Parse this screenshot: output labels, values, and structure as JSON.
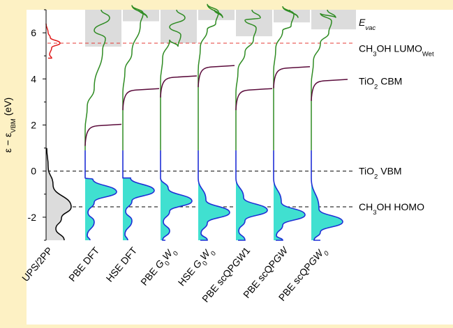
{
  "chart_data": {
    "type": "line",
    "title": "",
    "xlabel": "",
    "ylabel": {
      "parts": [
        {
          "text": "ε − ε",
          "sub": ""
        },
        {
          "text": "",
          "sub": "VBM"
        },
        {
          "text": " (eV)",
          "sub": ""
        }
      ]
    },
    "ylim": [
      -3.0,
      7.0
    ],
    "yticks": [
      -2,
      0,
      2,
      4,
      6
    ],
    "ytick_labels": [
      "-2",
      "0",
      "2",
      "4",
      "6"
    ],
    "reference_lines": [
      {
        "id": "lumo",
        "value": 5.55,
        "style": "dashed",
        "color": "#e53935"
      },
      {
        "id": "vbm",
        "value": 0.0,
        "style": "dashed",
        "color": "#000000"
      },
      {
        "id": "homo",
        "value": -1.55,
        "style": "dashed",
        "color": "#000000"
      }
    ],
    "level_labels": [
      {
        "id": "evac",
        "value": 6.4,
        "parts": [
          {
            "t": "E",
            "it": true
          },
          {
            "t": "vac",
            "sub": true,
            "it": true
          }
        ]
      },
      {
        "id": "lumo",
        "value": 5.55,
        "parts": [
          {
            "t": "CH"
          },
          {
            "t": "3",
            "sub": true
          },
          {
            "t": "OH LUMO"
          },
          {
            "t": "Wet",
            "sub": true
          }
        ]
      },
      {
        "id": "cbm",
        "value": 3.9,
        "parts": [
          {
            "t": "TiO"
          },
          {
            "t": "2",
            "sub": true
          },
          {
            "t": " CBM"
          }
        ]
      },
      {
        "id": "vbm",
        "value": 0.0,
        "parts": [
          {
            "t": "TiO"
          },
          {
            "t": "2",
            "sub": true
          },
          {
            "t": " VBM"
          }
        ]
      },
      {
        "id": "homo",
        "value": -1.55,
        "parts": [
          {
            "t": "CH"
          },
          {
            "t": "3",
            "sub": true
          },
          {
            "t": "OH HOMO"
          }
        ]
      }
    ],
    "experiment": {
      "label": "UPS/2PP",
      "lumo_peak": 5.55,
      "homo_peak": -1.55
    },
    "methods": [
      {
        "label": [
          {
            "t": "PBE DFT"
          }
        ],
        "cbm": 2.0,
        "evac": 5.4,
        "homo": -0.9
      },
      {
        "label": [
          {
            "t": "HSE DFT"
          }
        ],
        "cbm": 3.55,
        "evac": 6.5,
        "homo": -0.85
      },
      {
        "label": [
          {
            "t": "PBE "
          },
          {
            "t": "G",
            "it": true
          },
          {
            "t": "0",
            "sub": true
          },
          {
            "t": "W",
            "it": true
          },
          {
            "t": "0",
            "sub": true
          }
        ],
        "cbm": 4.1,
        "evac": 5.55,
        "homo": -1.3
      },
      {
        "label": [
          {
            "t": "HSE "
          },
          {
            "t": "G",
            "it": true
          },
          {
            "t": "0",
            "sub": true
          },
          {
            "t": "W",
            "it": true
          },
          {
            "t": "0",
            "sub": true
          }
        ],
        "cbm": 4.55,
        "evac": 6.55,
        "homo": -1.8
      },
      {
        "label": [
          {
            "t": "PBE scQP"
          },
          {
            "t": "GW",
            "it": true
          },
          {
            "t": "1"
          }
        ],
        "cbm": 3.55,
        "evac": 5.85,
        "homo": -1.7
      },
      {
        "label": [
          {
            "t": "PBE scQP"
          },
          {
            "t": "GW",
            "it": true
          }
        ],
        "cbm": 4.5,
        "evac": 6.45,
        "homo": -1.9
      },
      {
        "label": [
          {
            "t": "PBE scQP"
          },
          {
            "t": "GW",
            "it": true
          },
          {
            "t": "0",
            "sub": true,
            "it": true
          }
        ],
        "cbm": 3.95,
        "evac": 6.15,
        "homo": -2.2
      }
    ],
    "colors": {
      "axis": "#000000",
      "evac_band": "#dcdcdc",
      "unoccupied": "#2e8b22",
      "occupied": "#1f2fd6",
      "occupied_fill": "#40e0d0",
      "cbm_curve": "#5a0a3a",
      "experiment_lumo": "#e01a1a",
      "experiment_homo": "#000000",
      "experiment_fill": "#dcdcdc",
      "lumo_line": "#e53935",
      "background": "#fdf1c4",
      "plot_background": "#ffffff"
    }
  }
}
